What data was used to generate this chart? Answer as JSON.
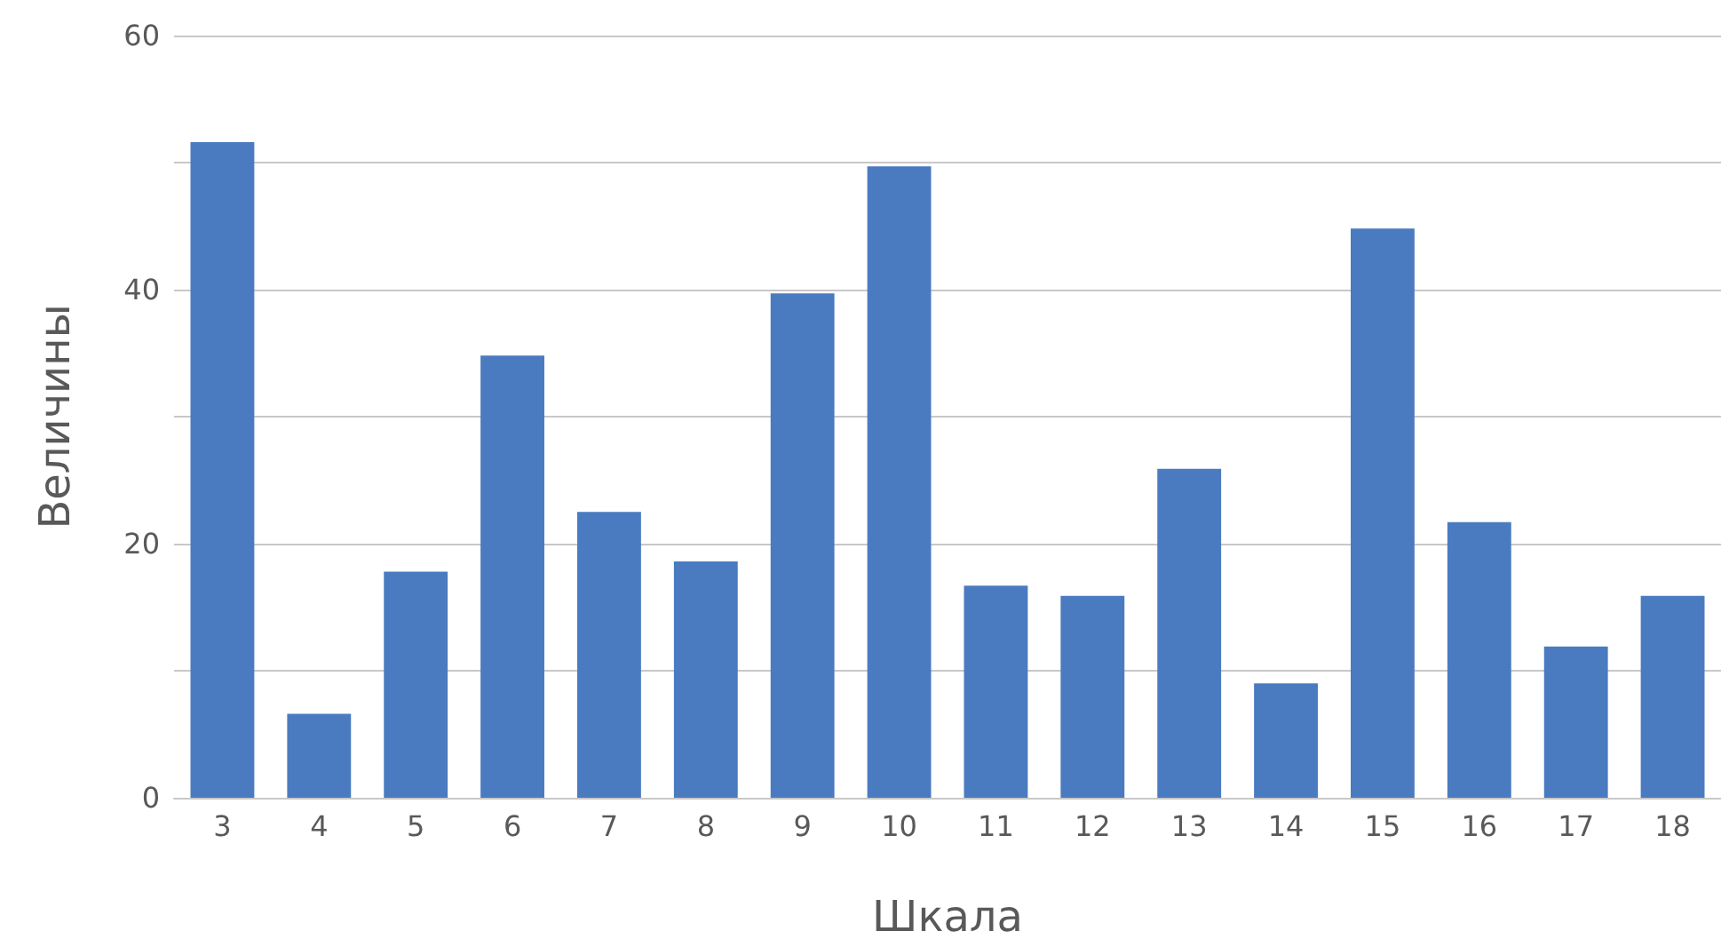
{
  "chart_data": {
    "type": "bar",
    "xlabel": "Шкала",
    "ylabel": "Величины",
    "categories": [
      "3",
      "4",
      "5",
      "6",
      "7",
      "8",
      "9",
      "10",
      "11",
      "12",
      "13",
      "14",
      "15",
      "16",
      "17",
      "18"
    ],
    "values": [
      51.6,
      6.6,
      17.8,
      34.8,
      22.5,
      18.6,
      39.7,
      49.7,
      16.7,
      15.9,
      25.9,
      9.0,
      44.8,
      21.7,
      11.9,
      15.9
    ],
    "color": "#4a7bc0",
    "ylim": [
      0,
      60
    ],
    "yticks": [
      0,
      {
        "value": 10,
        "label": null
      },
      20,
      {
        "value": 30,
        "label": null
      },
      40,
      {
        "value": 50,
        "label": null
      },
      60
    ],
    "grid": "y"
  }
}
